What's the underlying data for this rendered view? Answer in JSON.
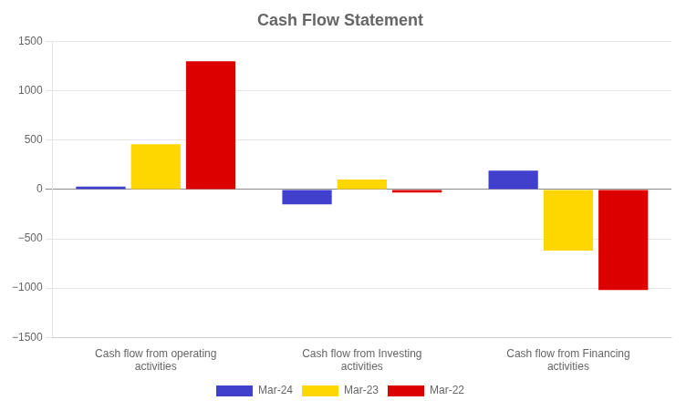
{
  "chart_data": {
    "type": "bar",
    "title": "Cash Flow Statement",
    "categories": [
      "Cash flow from operating\nactivities",
      "Cash flow from Investing\nactivities",
      "Cash flow from Financing\nactivities"
    ],
    "series": [
      {
        "name": "Mar-24",
        "color": "#4040cc",
        "values": [
          30,
          -150,
          190
        ]
      },
      {
        "name": "Mar-23",
        "color": "#ffd700",
        "values": [
          460,
          100,
          -620
        ]
      },
      {
        "name": "Mar-22",
        "color": "#dd0000",
        "values": [
          1300,
          -30,
          -1020
        ]
      }
    ],
    "ylim": [
      -1500,
      1500
    ],
    "yticks": [
      {
        "value": -1500,
        "label": "−1500"
      },
      {
        "value": -1000,
        "label": "−1000"
      },
      {
        "value": -500,
        "label": "−500"
      },
      0,
      500,
      1000,
      1500
    ],
    "grid": true,
    "legend": "bottom"
  }
}
